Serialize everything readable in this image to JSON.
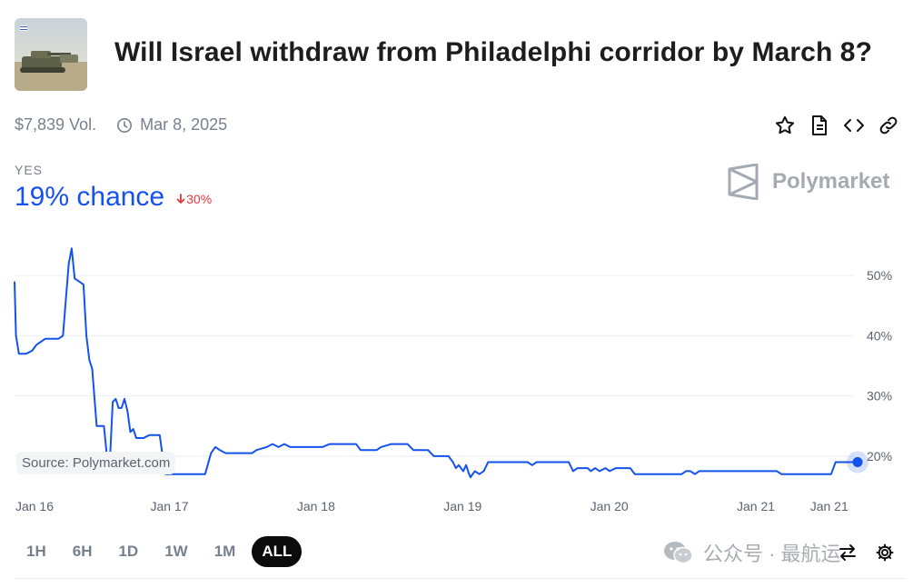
{
  "title": "Will Israel withdraw from Philadelphi corridor by March 8?",
  "volume": "$7,839 Vol.",
  "end_date": "Mar 8, 2025",
  "outcome_label": "YES",
  "chance": "19% chance",
  "change": "30%",
  "brand": "Polymarket",
  "source_label": "Source: Polymarket.com",
  "ranges": [
    "1H",
    "6H",
    "1D",
    "1W",
    "1M",
    "ALL"
  ],
  "active_range": "ALL",
  "watermark": "公众号 · 最航运",
  "colors": {
    "accent": "#1452f0",
    "down": "#e23939",
    "muted": "#77808d"
  },
  "icons": [
    "clock-icon",
    "star-icon",
    "document-icon",
    "embed-code-icon",
    "link-icon",
    "swap-icon",
    "gear-icon"
  ],
  "chart_data": {
    "type": "line",
    "xlabel": "",
    "ylabel": "",
    "x_ticks": [
      "Jan 16",
      "Jan 17",
      "Jan 18",
      "Jan 19",
      "Jan 20",
      "Jan 21",
      "Jan 21"
    ],
    "y_ticks": [
      "20%",
      "30%",
      "40%",
      "50%"
    ],
    "ylim": [
      15.3,
      55
    ],
    "x_range_days": [
      0,
      5.75
    ],
    "grid": true,
    "series": [
      {
        "color": "#1452f0",
        "points": [
          [
            0.0,
            49
          ],
          [
            0.01,
            40
          ],
          [
            0.03,
            37
          ],
          [
            0.08,
            37
          ],
          [
            0.12,
            37.5
          ],
          [
            0.15,
            38.5
          ],
          [
            0.18,
            39
          ],
          [
            0.21,
            39.5
          ],
          [
            0.3,
            39.5
          ],
          [
            0.33,
            40
          ],
          [
            0.35,
            46
          ],
          [
            0.37,
            52
          ],
          [
            0.39,
            54.5
          ],
          [
            0.41,
            49.5
          ],
          [
            0.44,
            49
          ],
          [
            0.47,
            48.5
          ],
          [
            0.49,
            40
          ],
          [
            0.51,
            36
          ],
          [
            0.53,
            34.5
          ],
          [
            0.56,
            25
          ],
          [
            0.59,
            25
          ],
          [
            0.61,
            25
          ],
          [
            0.63,
            20
          ],
          [
            0.65,
            19
          ],
          [
            0.67,
            29
          ],
          [
            0.69,
            29.5
          ],
          [
            0.71,
            28
          ],
          [
            0.73,
            28
          ],
          [
            0.75,
            29.5
          ],
          [
            0.77,
            27.5
          ],
          [
            0.79,
            24
          ],
          [
            0.81,
            24.5
          ],
          [
            0.83,
            23
          ],
          [
            0.88,
            23
          ],
          [
            0.92,
            23.5
          ],
          [
            0.99,
            23.5
          ],
          [
            1.01,
            20
          ],
          [
            1.03,
            17
          ],
          [
            1.3,
            17
          ],
          [
            1.34,
            20.5
          ],
          [
            1.37,
            21.5
          ],
          [
            1.4,
            21
          ],
          [
            1.44,
            20.5
          ],
          [
            1.62,
            20.5
          ],
          [
            1.65,
            21
          ],
          [
            1.72,
            21.5
          ],
          [
            1.76,
            22
          ],
          [
            1.8,
            21.5
          ],
          [
            1.84,
            22
          ],
          [
            1.88,
            21.5
          ],
          [
            2.0,
            21.5
          ],
          [
            2.1,
            21.5
          ],
          [
            2.15,
            22
          ],
          [
            2.33,
            22
          ],
          [
            2.36,
            21
          ],
          [
            2.47,
            21
          ],
          [
            2.5,
            21.5
          ],
          [
            2.57,
            22
          ],
          [
            2.68,
            22
          ],
          [
            2.72,
            21
          ],
          [
            2.82,
            21
          ],
          [
            2.86,
            20
          ],
          [
            2.96,
            20
          ],
          [
            2.99,
            19
          ],
          [
            3.01,
            18
          ],
          [
            3.03,
            18.5
          ],
          [
            3.06,
            17.5
          ],
          [
            3.08,
            18.5
          ],
          [
            3.1,
            17
          ],
          [
            3.11,
            16.5
          ],
          [
            3.14,
            17.5
          ],
          [
            3.17,
            17
          ],
          [
            3.2,
            17.5
          ],
          [
            3.23,
            19
          ],
          [
            3.27,
            19
          ],
          [
            3.5,
            19
          ],
          [
            3.53,
            18.5
          ],
          [
            3.56,
            19
          ],
          [
            3.75,
            19
          ],
          [
            3.78,
            19
          ],
          [
            3.81,
            17.5
          ],
          [
            3.84,
            18
          ],
          [
            3.91,
            18
          ],
          [
            3.93,
            17.5
          ],
          [
            3.96,
            18
          ],
          [
            3.99,
            17.5
          ],
          [
            4.03,
            18
          ],
          [
            4.06,
            17.5
          ],
          [
            4.1,
            18
          ],
          [
            4.2,
            18
          ],
          [
            4.23,
            17
          ],
          [
            4.55,
            17
          ],
          [
            4.58,
            17.5
          ],
          [
            4.61,
            17.5
          ],
          [
            4.64,
            17
          ],
          [
            4.67,
            17.5
          ],
          [
            5.0,
            17.5
          ],
          [
            5.2,
            17.5
          ],
          [
            5.23,
            17
          ],
          [
            5.57,
            17
          ],
          [
            5.6,
            19
          ],
          [
            5.68,
            19
          ],
          [
            5.75,
            19
          ]
        ]
      }
    ]
  }
}
